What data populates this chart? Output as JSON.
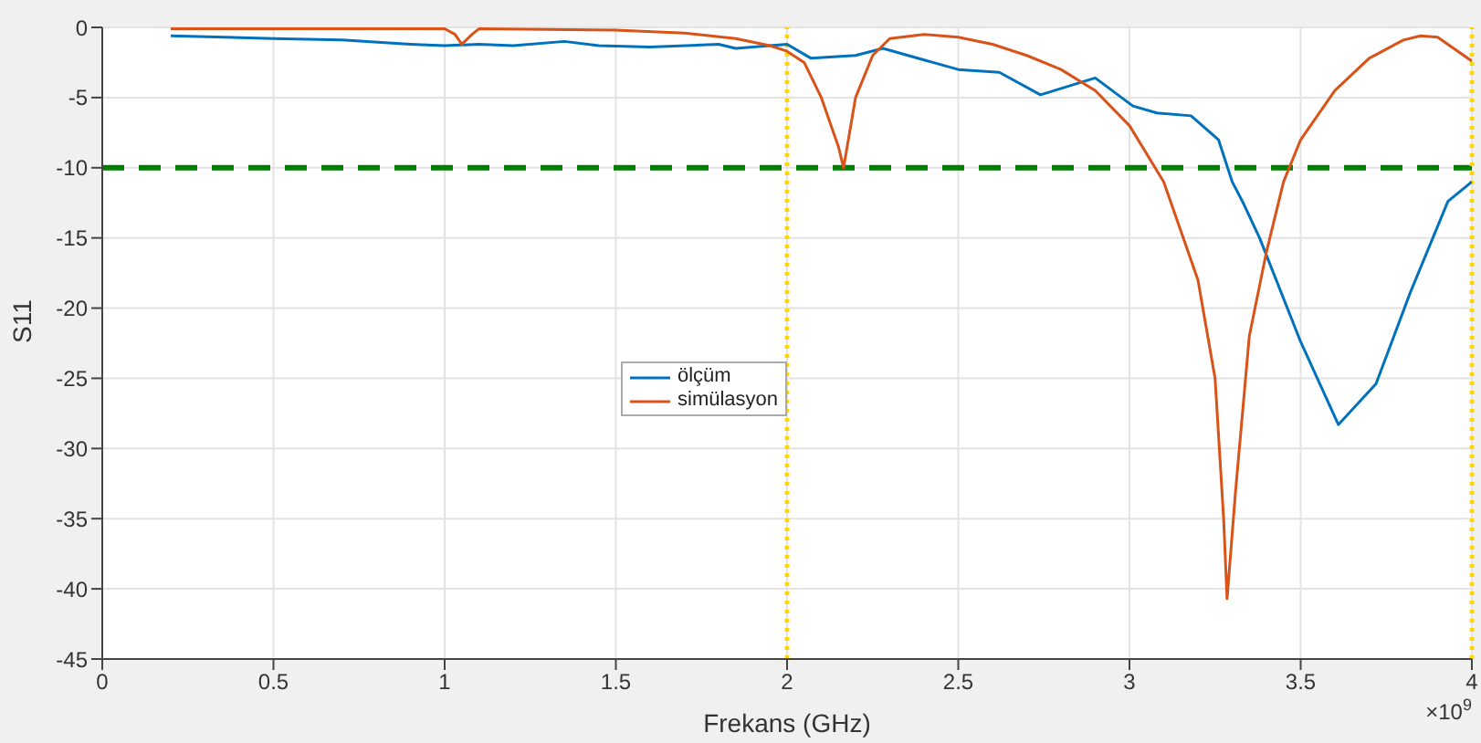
{
  "chart_data": {
    "type": "line",
    "xlabel": "Frekans (GHz)",
    "ylabel": "S11",
    "xlim": [
      0,
      4
    ],
    "xticks": [
      0,
      0.5,
      1,
      1.5,
      2,
      2.5,
      3,
      3.5,
      4
    ],
    "ylim": [
      -45,
      0
    ],
    "yticks": [
      -45,
      -40,
      -35,
      -30,
      -25,
      -20,
      -15,
      -10,
      -5,
      0
    ],
    "grid": true,
    "legend": "center",
    "line_style": "solid",
    "marker": "none",
    "annotations": [
      "×10$^{9}$"
    ],
    "ref_lines": [
      {
        "axis": "y",
        "value": -10,
        "color": "#008000",
        "line_style": "dashed"
      },
      {
        "axis": "x",
        "value": 2,
        "color": "#ffd700",
        "line_style": "dotted"
      },
      {
        "axis": "x",
        "value": 4,
        "color": "#ffd700",
        "line_style": "dotted"
      }
    ],
    "series": [
      {
        "name": "ölçüm",
        "color": "#0072bd",
        "x": [
          0.2,
          0.5,
          0.7,
          0.9,
          1,
          1.1,
          1.2,
          1.35,
          1.45,
          1.6,
          1.8,
          1.85,
          2,
          2.07,
          2.2,
          2.28,
          2.5,
          2.62,
          2.74,
          2.9,
          3.01,
          3.08,
          3.18,
          3.26,
          3.3,
          3.33,
          3.38,
          3.5,
          3.61,
          3.72,
          3.82,
          3.93,
          4
        ],
        "values": [
          -0.6,
          -0.8,
          -0.9,
          -1.2,
          -1.3,
          -1.2,
          -1.3,
          -1.0,
          -1.3,
          -1.4,
          -1.2,
          -1.5,
          -1.2,
          -2.2,
          -2.0,
          -1.5,
          -3.0,
          -3.2,
          -4.8,
          -3.6,
          -5.6,
          -6.1,
          -6.3,
          -8.0,
          -11,
          -12.4,
          -15,
          -22.4,
          -28.3,
          -25.4,
          -18.9,
          -12.4,
          -11
        ]
      },
      {
        "name": "simülasyon",
        "color": "#d95319",
        "x": [
          0.2,
          0.5,
          1,
          1.03,
          1.05,
          1.08,
          1.1,
          1.5,
          1.7,
          1.85,
          1.95,
          2,
          2.05,
          2.1,
          2.15,
          2.165,
          2.2,
          2.25,
          2.3,
          2.4,
          2.5,
          2.6,
          2.7,
          2.8,
          2.9,
          3,
          3.1,
          3.2,
          3.25,
          3.275,
          3.285,
          3.31,
          3.35,
          3.4,
          3.45,
          3.5,
          3.6,
          3.7,
          3.8,
          3.85,
          3.9,
          4
        ],
        "values": [
          -0.1,
          -0.1,
          -0.1,
          -0.5,
          -1.2,
          -0.5,
          -0.1,
          -0.2,
          -0.4,
          -0.8,
          -1.3,
          -1.7,
          -2.5,
          -5,
          -8.5,
          -10,
          -5,
          -2,
          -0.8,
          -0.5,
          -0.7,
          -1.2,
          -2,
          -3,
          -4.5,
          -7,
          -11,
          -18,
          -25,
          -35,
          -40.7,
          -33,
          -22,
          -16,
          -11,
          -8,
          -4.5,
          -2.2,
          -0.9,
          -0.6,
          -0.7,
          -2.4
        ]
      }
    ]
  }
}
